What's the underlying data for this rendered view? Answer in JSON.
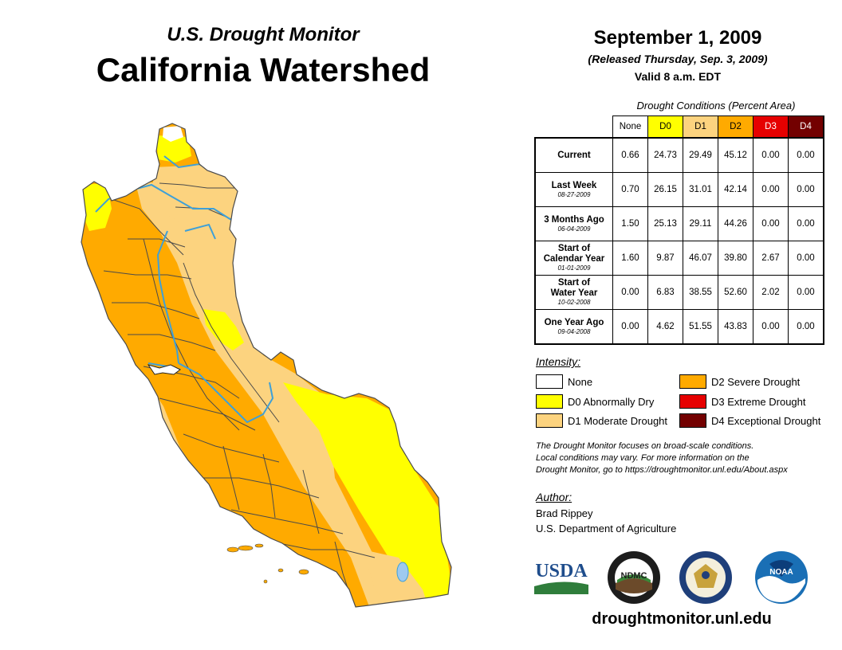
{
  "header": {
    "subtitle": "U.S. Drought Monitor",
    "title": "California Watershed",
    "date": "September 1, 2009",
    "released": "(Released Thursday, Sep. 3, 2009)",
    "valid": "Valid 8 a.m. EDT"
  },
  "table": {
    "caption": "Drought Conditions (Percent Area)",
    "columns": [
      "None",
      "D0",
      "D1",
      "D2",
      "D3",
      "D4"
    ],
    "column_colors": [
      "#ffffff",
      "#ffff00",
      "#fcd37f",
      "#ffaa00",
      "#e60000",
      "#730000"
    ],
    "rows": [
      {
        "label": "Current",
        "date": "",
        "values": [
          "0.66",
          "24.73",
          "29.49",
          "45.12",
          "0.00",
          "0.00"
        ]
      },
      {
        "label": "Last Week",
        "date": "08-27-2009",
        "values": [
          "0.70",
          "26.15",
          "31.01",
          "42.14",
          "0.00",
          "0.00"
        ]
      },
      {
        "label": "3 Months Ago",
        "date": "06-04-2009",
        "values": [
          "1.50",
          "25.13",
          "29.11",
          "44.26",
          "0.00",
          "0.00"
        ]
      },
      {
        "label": "Start of Calendar Year",
        "date": "01-01-2009",
        "values": [
          "1.60",
          "9.87",
          "46.07",
          "39.80",
          "2.67",
          "0.00"
        ]
      },
      {
        "label": "Start of Water Year",
        "date": "10-02-2008",
        "values": [
          "0.00",
          "6.83",
          "38.55",
          "52.60",
          "2.02",
          "0.00"
        ]
      },
      {
        "label": "One Year Ago",
        "date": "09-04-2008",
        "values": [
          "0.00",
          "4.62",
          "51.55",
          "43.83",
          "0.00",
          "0.00"
        ]
      }
    ]
  },
  "legend": {
    "title": "Intensity:",
    "items": [
      {
        "label": "None",
        "color": "#ffffff"
      },
      {
        "label": "D0 Abnormally Dry",
        "color": "#ffff00"
      },
      {
        "label": "D1 Moderate Drought",
        "color": "#fcd37f"
      },
      {
        "label": "D2 Severe Drought",
        "color": "#ffaa00"
      },
      {
        "label": "D3 Extreme Drought",
        "color": "#e60000"
      },
      {
        "label": "D4 Exceptional Drought",
        "color": "#730000"
      }
    ]
  },
  "note": {
    "line1": "The Drought Monitor focuses on broad-scale conditions.",
    "line2": "Local conditions may vary. For more information on the",
    "line3": "Drought Monitor, go to https://droughtmonitor.unl.edu/About.aspx"
  },
  "author": {
    "label": "Author:",
    "name": "Brad Rippey",
    "org": "U.S. Department of Agriculture"
  },
  "logos": {
    "usda": "USDA",
    "ndmc": "NDMC",
    "noaa": "NOAA"
  },
  "website": "droughtmonitor.unl.edu",
  "map_colors": {
    "none": "#ffffff",
    "d0": "#ffff00",
    "d1": "#fcd37f",
    "d2": "#ffaa00",
    "river": "#3ea0d8",
    "lake": "#9ec9ee",
    "border": "#4a4a4a"
  }
}
